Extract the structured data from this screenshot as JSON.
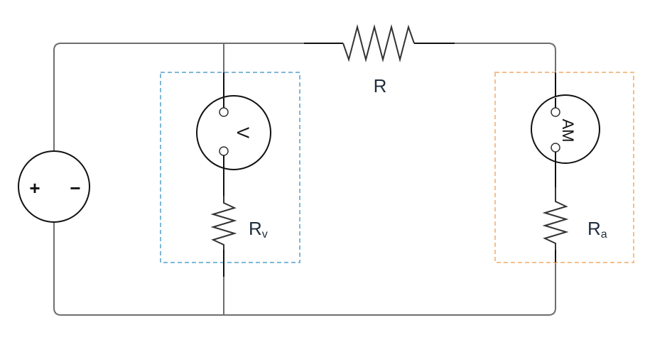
{
  "diagram": {
    "resistor_main": {
      "label": "R"
    },
    "voltmeter": {
      "symbol": "V",
      "resistor_label_base": "R",
      "resistor_label_sub": "v",
      "box_color": "#7fb7d9"
    },
    "ammeter": {
      "symbol": "AM",
      "resistor_label_base": "R",
      "resistor_label_sub": "a",
      "box_color": "#f4bf8d"
    },
    "source": {
      "plus": "+",
      "minus": "−"
    }
  }
}
